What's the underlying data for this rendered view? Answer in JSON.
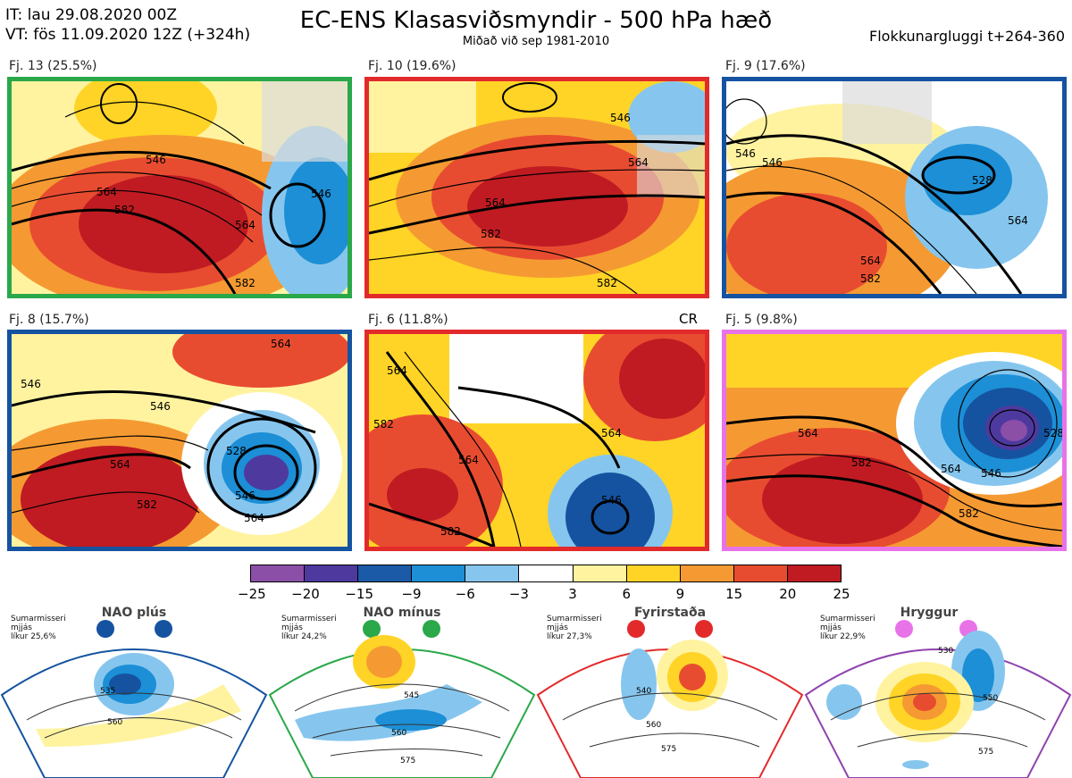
{
  "header": {
    "line1": "IT: lau 29.08.2020 00Z",
    "line2": "VT: fös 11.09.2020 12Z  (+324h)",
    "title": "EC-ENS Klasasviðsmyndir - 500 hPa hæð",
    "subtitle": "Miðað við sep 1981-2010",
    "window": "Flokkunargluggi t+264-360"
  },
  "panels": [
    {
      "label": "Fj. 13 (25.5%)",
      "border": "#2aa84a",
      "contours": [
        "546",
        "564",
        "582",
        "546",
        "564",
        "582"
      ]
    },
    {
      "label": "Fj. 10 (19.6%)",
      "border": "#e22a2a",
      "contours": [
        "546",
        "564",
        "582",
        "582",
        "564"
      ]
    },
    {
      "label": "Fj. 9 (17.6%)",
      "border": "#1553a0",
      "contours": [
        "546",
        "564",
        "582",
        "528",
        "564",
        "546"
      ]
    },
    {
      "label": "Fj. 8 (15.7%)",
      "border": "#1553a0",
      "contours": [
        "546",
        "564",
        "582",
        "528",
        "546",
        "564",
        "546",
        "564"
      ]
    },
    {
      "label": "Fj. 6 (11.8%)",
      "border": "#e22a2a",
      "contours": [
        "564",
        "582",
        "564",
        "546",
        "564",
        "582"
      ],
      "tag": "CR"
    },
    {
      "label": "Fj. 5 (9.8%)",
      "border": "#e873e8",
      "contours": [
        "564",
        "582",
        "546",
        "564",
        "582",
        "528"
      ]
    }
  ],
  "colorbar": {
    "ticks": [
      "−25",
      "−20",
      "−15",
      "−9",
      "−6",
      "−3",
      "3",
      "6",
      "9",
      "15",
      "20",
      "25"
    ],
    "colors": [
      "#8b4fa8",
      "#4e3a9e",
      "#1b5aa6",
      "#1c8fd6",
      "#86c6ee",
      "#ffffff",
      "#fff3a0",
      "#ffd426",
      "#f59a32",
      "#e84c30",
      "#c01b22"
    ]
  },
  "regimes": [
    {
      "name": "NAO plús",
      "color": "#1553a0",
      "stats": [
        "Sumarmisseri",
        "mjjás",
        "líkur 25,6%"
      ],
      "contours": [
        "535",
        "560"
      ]
    },
    {
      "name": "NAO mínus",
      "color": "#2aa84a",
      "stats": [
        "Sumarmisseri",
        "mjjás",
        "líkur 24,2%"
      ],
      "contours": [
        "545",
        "560",
        "575"
      ]
    },
    {
      "name": "Fyrirstaða",
      "color": "#e22a2a",
      "stats": [
        "Sumarmisseri",
        "mjjás",
        "líkur 27,3%"
      ],
      "contours": [
        "540",
        "560",
        "575"
      ]
    },
    {
      "name": "Hryggur",
      "color": "#e873e8",
      "stats": [
        "Sumarmisseri",
        "mjjás",
        "líkur 22,9%"
      ],
      "contours": [
        "530",
        "550",
        "575"
      ]
    }
  ]
}
